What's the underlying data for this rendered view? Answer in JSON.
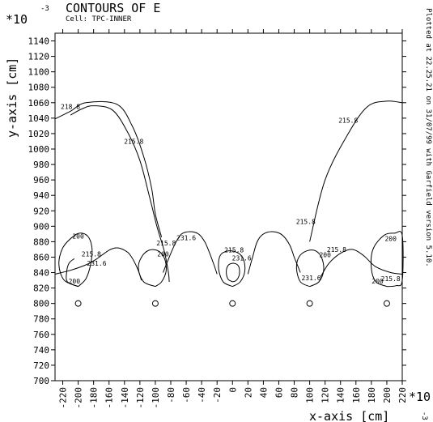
{
  "chart_data": {
    "type": "contour",
    "title": "CONTOURS OF E",
    "cell_label": "Cell: TPC-INNER",
    "xlabel": "x-axis [cm]",
    "ylabel": "y-axis [cm]",
    "x_multiplier": "*10",
    "x_multiplier_exp": "-3",
    "y_multiplier": "*10",
    "y_multiplier_exp": "-3",
    "side_note": "Plotted at 22.25.21 on 31/07/99 with Garfield version 5.10.",
    "xlim": [
      -230,
      220
    ],
    "ylim": [
      700,
      1150
    ],
    "x_ticks": [
      -220,
      -200,
      -180,
      -160,
      -140,
      -120,
      -100,
      -80,
      -60,
      -40,
      -20,
      0,
      20,
      40,
      60,
      80,
      100,
      120,
      140,
      160,
      180,
      200,
      220
    ],
    "y_ticks": [
      700,
      720,
      740,
      760,
      780,
      800,
      820,
      840,
      860,
      880,
      900,
      920,
      940,
      960,
      980,
      1000,
      1020,
      1040,
      1060,
      1080,
      1100,
      1120,
      1140
    ],
    "wires": [
      {
        "x": -200,
        "y": 800
      },
      {
        "x": -100,
        "y": 800
      },
      {
        "x": 0,
        "y": 800
      },
      {
        "x": 100,
        "y": 800
      },
      {
        "x": 200,
        "y": 800
      }
    ],
    "contours": [
      {
        "level": "218.8",
        "points": [
          [
            -230,
            1039
          ],
          [
            -210,
            1049
          ],
          [
            -190,
            1060
          ],
          [
            -150,
            1058
          ],
          [
            -130,
            1030
          ],
          [
            -115,
            990
          ],
          [
            -105,
            950
          ],
          [
            -100,
            916
          ],
          [
            -92,
            886
          ]
        ]
      },
      {
        "level": "215.8",
        "points": [
          [
            -210,
            1044
          ],
          [
            -195,
            1052
          ],
          [
            -180,
            1056
          ],
          [
            -155,
            1050
          ],
          [
            -135,
            1020
          ],
          [
            -120,
            985
          ],
          [
            -108,
            940
          ],
          [
            -98,
            900
          ],
          [
            -92,
            880
          ],
          [
            -88,
            866
          ],
          [
            -83,
            840
          ],
          [
            -82,
            828
          ]
        ]
      },
      {
        "level": "215.8",
        "points": [
          [
            100,
            880
          ],
          [
            120,
            960
          ],
          [
            150,
            1020
          ],
          [
            175,
            1055
          ],
          [
            200,
            1062
          ],
          [
            220,
            1060
          ]
        ]
      },
      {
        "level": "231.6",
        "points": [
          [
            -230,
            838
          ],
          [
            -210,
            843
          ],
          [
            -190,
            850
          ],
          [
            -177,
            857
          ],
          [
            -160,
            869
          ],
          [
            -150,
            872
          ],
          [
            -140,
            869
          ],
          [
            -132,
            862
          ],
          [
            -123,
            845
          ],
          [
            -118,
            830
          ]
        ]
      },
      {
        "level": "231.6",
        "points": [
          [
            -90,
            840
          ],
          [
            -82,
            860
          ],
          [
            -74,
            878
          ],
          [
            -66,
            890
          ],
          [
            -55,
            893
          ],
          [
            -44,
            890
          ],
          [
            -36,
            880
          ],
          [
            -30,
            866
          ],
          [
            -24,
            850
          ],
          [
            -20,
            838
          ]
        ]
      },
      {
        "level": "231.6",
        "points": [
          [
            20,
            838
          ],
          [
            26,
            860
          ],
          [
            32,
            880
          ],
          [
            40,
            890
          ],
          [
            52,
            893
          ],
          [
            64,
            889
          ],
          [
            74,
            876
          ],
          [
            80,
            860
          ],
          [
            86,
            845
          ],
          [
            88,
            840
          ]
        ]
      },
      {
        "level": "231.6",
        "points": [
          [
            114,
            834
          ],
          [
            125,
            852
          ],
          [
            140,
            865
          ],
          [
            155,
            870
          ],
          [
            170,
            862
          ],
          [
            185,
            848
          ],
          [
            205,
            840
          ],
          [
            220,
            838
          ]
        ]
      },
      {
        "level": "200",
        "points": [
          [
            -200,
            822
          ],
          [
            -218,
            830
          ],
          [
            -225,
            850
          ],
          [
            -220,
            872
          ],
          [
            -205,
            888
          ],
          [
            -195,
            891
          ],
          [
            -186,
            885
          ],
          [
            -182,
            870
          ],
          [
            -184,
            850
          ],
          [
            -190,
            832
          ],
          [
            -200,
            822
          ]
        ]
      },
      {
        "level": "200",
        "points": [
          [
            -100,
            822
          ],
          [
            -115,
            828
          ],
          [
            -122,
            845
          ],
          [
            -118,
            860
          ],
          [
            -108,
            869
          ],
          [
            -96,
            868
          ],
          [
            -88,
            858
          ],
          [
            -86,
            842
          ],
          [
            -92,
            828
          ],
          [
            -100,
            822
          ]
        ]
      },
      {
        "level": "200",
        "points": [
          [
            0,
            822
          ],
          [
            -12,
            828
          ],
          [
            -18,
            845
          ],
          [
            -16,
            862
          ],
          [
            -6,
            868
          ],
          [
            6,
            866
          ],
          [
            14,
            858
          ],
          [
            16,
            842
          ],
          [
            10,
            828
          ],
          [
            0,
            822
          ]
        ]
      },
      {
        "level": "200",
        "points": [
          [
            100,
            822
          ],
          [
            88,
            828
          ],
          [
            83,
            845
          ],
          [
            86,
            860
          ],
          [
            96,
            868
          ],
          [
            108,
            868
          ],
          [
            116,
            858
          ],
          [
            118,
            842
          ],
          [
            112,
            828
          ],
          [
            100,
            822
          ]
        ]
      },
      {
        "level": "200",
        "points": [
          [
            200,
            822
          ],
          [
            186,
            828
          ],
          [
            180,
            845
          ],
          [
            182,
            870
          ],
          [
            196,
            888
          ],
          [
            210,
            891
          ],
          [
            220,
            888
          ],
          [
            220,
            830
          ],
          [
            212,
            823
          ],
          [
            200,
            822
          ]
        ]
      },
      {
        "level": "215.8",
        "points": [
          [
            -200,
            822
          ],
          [
            -214,
            828
          ],
          [
            -215,
            840
          ],
          [
            -212,
            852
          ],
          [
            -205,
            858
          ]
        ]
      },
      {
        "level": "215.8",
        "points": [
          [
            0,
            828
          ],
          [
            -6,
            832
          ],
          [
            -8,
            842
          ],
          [
            -5,
            850
          ],
          [
            2,
            852
          ],
          [
            8,
            848
          ],
          [
            9,
            838
          ],
          [
            5,
            830
          ],
          [
            0,
            828
          ]
        ]
      }
    ],
    "contour_labels": [
      {
        "text": "218.8",
        "x": -210,
        "y": 1052
      },
      {
        "text": "215.8",
        "x": -128,
        "y": 1007
      },
      {
        "text": "215.8",
        "x": 150,
        "y": 1034
      },
      {
        "text": "215.8",
        "x": 95,
        "y": 903
      },
      {
        "text": "200",
        "x": -200,
        "y": 884
      },
      {
        "text": "215.8",
        "x": -183,
        "y": 861
      },
      {
        "text": "231.6",
        "x": -176,
        "y": 849
      },
      {
        "text": "200",
        "x": -205,
        "y": 826
      },
      {
        "text": "215.8",
        "x": -86,
        "y": 875
      },
      {
        "text": "200",
        "x": -90,
        "y": 861
      },
      {
        "text": "231.6",
        "x": -60,
        "y": 882
      },
      {
        "text": "215.8",
        "x": 2,
        "y": 866
      },
      {
        "text": "231.6",
        "x": 12,
        "y": 856
      },
      {
        "text": "231.6",
        "x": 102,
        "y": 830
      },
      {
        "text": "200",
        "x": 120,
        "y": 860
      },
      {
        "text": "215.8",
        "x": 135,
        "y": 867
      },
      {
        "text": "200",
        "x": 205,
        "y": 881
      },
      {
        "text": "200",
        "x": 188,
        "y": 826
      },
      {
        "text": "215.8",
        "x": 205,
        "y": 829
      }
    ]
  }
}
